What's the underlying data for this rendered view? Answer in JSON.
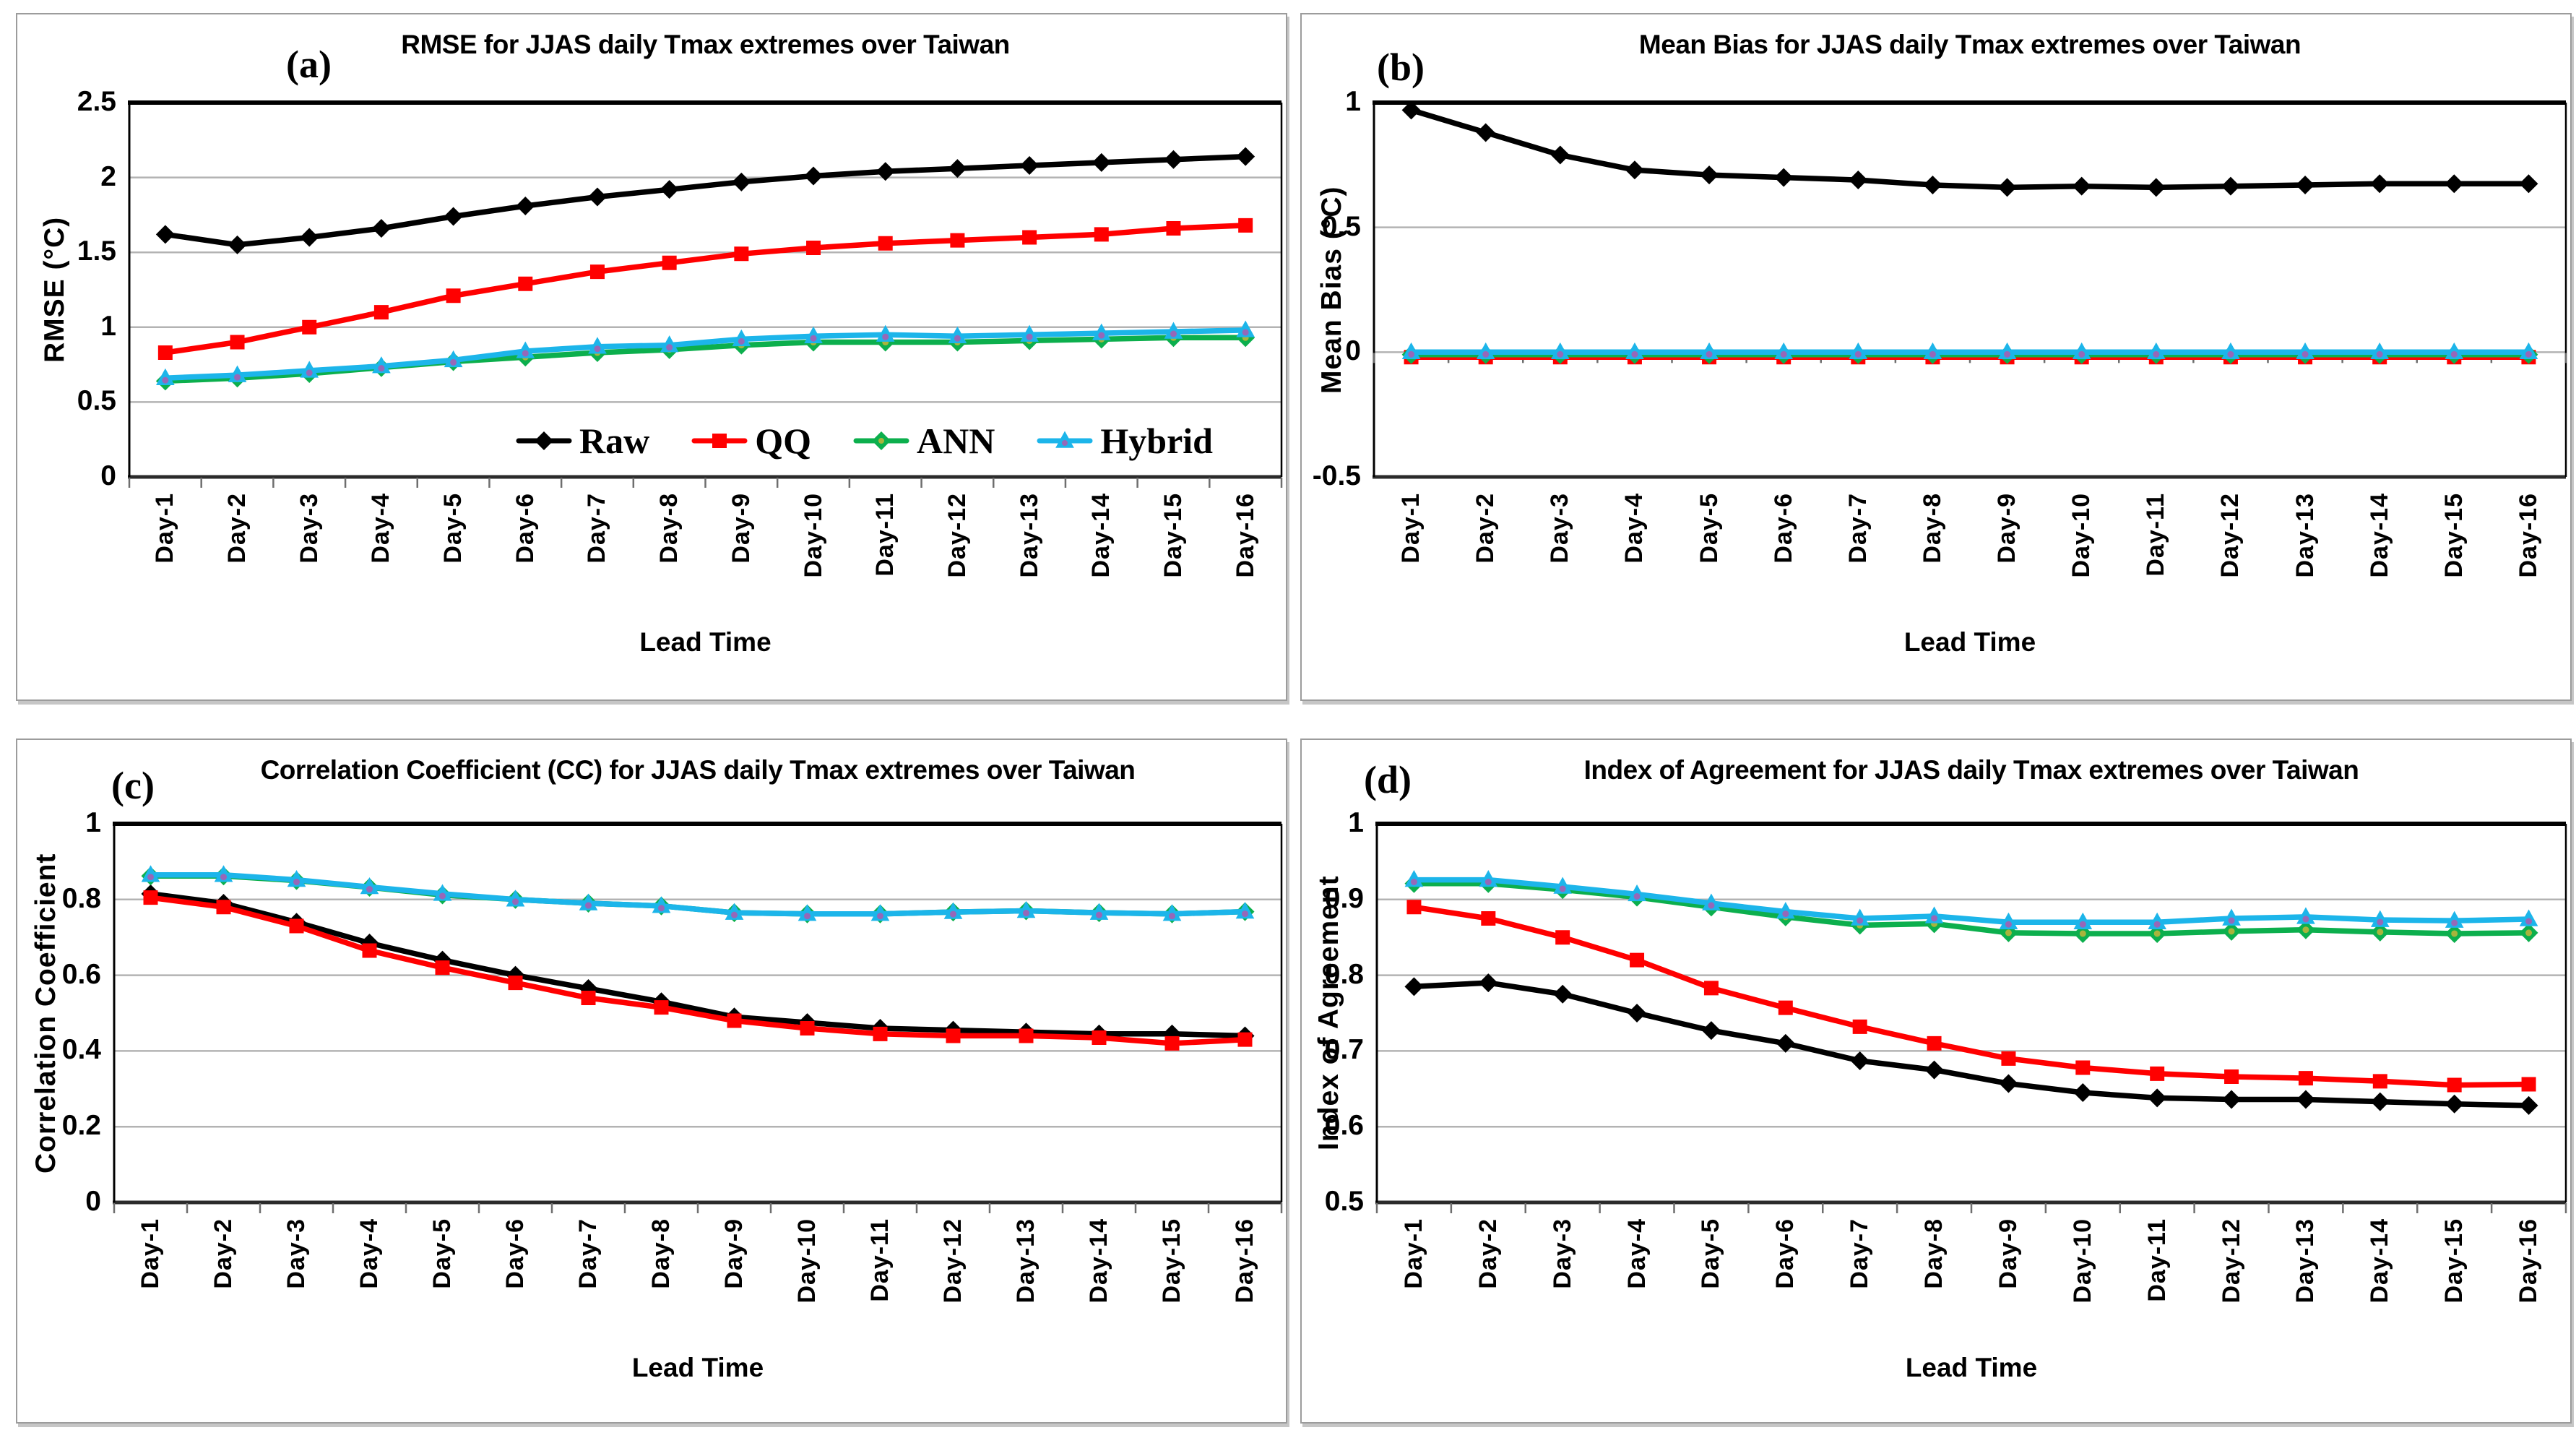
{
  "figure": {
    "background": "#ffffff",
    "series_colors": {
      "Raw": "#000000",
      "QQ": "#ff0000",
      "ANN": "#0caf4d",
      "Hybrid": "#1cb5ea"
    },
    "gridline_color": "#b3b3b3",
    "axis_color": "#000000"
  },
  "chart_data": [
    {
      "id": "a",
      "panel_label": "(a)",
      "type": "line",
      "title": "RMSE for JJAS daily Tmax extremes over Taiwan",
      "xlabel": "Lead Time",
      "ylabel": "RMSE (°C)",
      "ylim": [
        0,
        2.5
      ],
      "y_ticks": [
        {
          "v": 2.5,
          "label": "2.5"
        },
        {
          "v": 2,
          "label": "2"
        },
        {
          "v": 1.5,
          "label": "1.5"
        },
        {
          "v": 1,
          "label": "1"
        },
        {
          "v": 0.5,
          "label": "0.5"
        },
        {
          "v": 0,
          "label": "0"
        }
      ],
      "grid": true,
      "legend_position": "inside-bottom",
      "show_legend": true,
      "categories": [
        "Day-1",
        "Day-2",
        "Day-3",
        "Day-4",
        "Day-5",
        "Day-6",
        "Day-7",
        "Day-8",
        "Day-9",
        "Day-10",
        "Day-11",
        "Day-12",
        "Day-13",
        "Day-14",
        "Day-15",
        "Day-16"
      ],
      "series": [
        {
          "name": "Raw",
          "color": "#000000",
          "marker": "diamond",
          "center": null,
          "values": [
            1.62,
            1.55,
            1.6,
            1.66,
            1.74,
            1.81,
            1.87,
            1.92,
            1.97,
            2.01,
            2.04,
            2.06,
            2.08,
            2.1,
            2.12,
            2.14
          ]
        },
        {
          "name": "QQ",
          "color": "#ff0000",
          "marker": "square",
          "center": null,
          "values": [
            0.83,
            0.9,
            1.0,
            1.1,
            1.21,
            1.29,
            1.37,
            1.43,
            1.49,
            1.53,
            1.56,
            1.58,
            1.6,
            1.62,
            1.66,
            1.68
          ]
        },
        {
          "name": "ANN",
          "color": "#0caf4d",
          "marker": "diamond",
          "center": "#a8b43c",
          "values": [
            0.64,
            0.66,
            0.69,
            0.73,
            0.77,
            0.8,
            0.83,
            0.85,
            0.88,
            0.9,
            0.9,
            0.9,
            0.91,
            0.92,
            0.93,
            0.93
          ]
        },
        {
          "name": "Hybrid",
          "color": "#1cb5ea",
          "marker": "triangle",
          "center": "#9668b8",
          "values": [
            0.66,
            0.68,
            0.71,
            0.74,
            0.78,
            0.84,
            0.87,
            0.88,
            0.92,
            0.94,
            0.95,
            0.94,
            0.95,
            0.96,
            0.97,
            0.98
          ]
        }
      ]
    },
    {
      "id": "b",
      "panel_label": "(b)",
      "type": "line",
      "title": "Mean Bias  for JJAS daily Tmax extremes over Taiwan",
      "xlabel": "Lead Time",
      "ylabel": "Mean Bias (°C)",
      "ylim": [
        -0.5,
        1
      ],
      "y_ticks": [
        {
          "v": 1,
          "label": "1"
        },
        {
          "v": 0.5,
          "label": "0.5"
        },
        {
          "v": 0,
          "label": "0"
        },
        {
          "v": -0.5,
          "label": "-0.5"
        }
      ],
      "grid": true,
      "legend_position": "none",
      "show_legend": false,
      "axis_cross_y": 0,
      "categories": [
        "Day-1",
        "Day-2",
        "Day-3",
        "Day-4",
        "Day-5",
        "Day-6",
        "Day-7",
        "Day-8",
        "Day-9",
        "Day-10",
        "Day-11",
        "Day-12",
        "Day-13",
        "Day-14",
        "Day-15",
        "Day-16"
      ],
      "series": [
        {
          "name": "Raw",
          "color": "#000000",
          "marker": "diamond",
          "center": null,
          "values": [
            0.97,
            0.88,
            0.79,
            0.73,
            0.71,
            0.7,
            0.69,
            0.67,
            0.66,
            0.665,
            0.66,
            0.665,
            0.67,
            0.675,
            0.675,
            0.675
          ]
        },
        {
          "name": "QQ",
          "color": "#ff0000",
          "marker": "square",
          "center": null,
          "values": [
            -0.02,
            -0.02,
            -0.02,
            -0.02,
            -0.02,
            -0.02,
            -0.02,
            -0.02,
            -0.02,
            -0.02,
            -0.02,
            -0.02,
            -0.02,
            -0.02,
            -0.02,
            -0.02
          ]
        },
        {
          "name": "ANN",
          "color": "#0caf4d",
          "marker": "diamond",
          "center": "#a8b43c",
          "values": [
            -0.01,
            -0.01,
            -0.01,
            -0.01,
            -0.01,
            -0.01,
            -0.01,
            -0.01,
            -0.01,
            -0.01,
            -0.01,
            -0.01,
            -0.01,
            -0.01,
            -0.01,
            -0.01
          ]
        },
        {
          "name": "Hybrid",
          "color": "#1cb5ea",
          "marker": "triangle",
          "center": "#9668b8",
          "values": [
            0.0,
            0.0,
            0.0,
            0.0,
            0.0,
            0.0,
            0.0,
            0.0,
            0.0,
            0.0,
            0.0,
            0.0,
            0.0,
            0.0,
            0.0,
            0.0
          ]
        }
      ]
    },
    {
      "id": "c",
      "panel_label": "(c)",
      "type": "line",
      "title": "Correlation Coefficient (CC) for JJAS daily Tmax extremes over Taiwan",
      "xlabel": "Lead Time",
      "ylabel": "Correlation Coefficient",
      "ylim": [
        0,
        1
      ],
      "y_ticks": [
        {
          "v": 1,
          "label": "1"
        },
        {
          "v": 0.8,
          "label": "0.8"
        },
        {
          "v": 0.6,
          "label": "0.6"
        },
        {
          "v": 0.4,
          "label": "0.4"
        },
        {
          "v": 0.2,
          "label": "0.2"
        },
        {
          "v": 0,
          "label": "0"
        }
      ],
      "grid": true,
      "legend_position": "none",
      "show_legend": false,
      "categories": [
        "Day-1",
        "Day-2",
        "Day-3",
        "Day-4",
        "Day-5",
        "Day-6",
        "Day-7",
        "Day-8",
        "Day-9",
        "Day-10",
        "Day-11",
        "Day-12",
        "Day-13",
        "Day-14",
        "Day-15",
        "Day-16"
      ],
      "series": [
        {
          "name": "Raw",
          "color": "#000000",
          "marker": "diamond",
          "center": null,
          "values": [
            0.815,
            0.79,
            0.74,
            0.685,
            0.64,
            0.6,
            0.565,
            0.53,
            0.49,
            0.475,
            0.46,
            0.455,
            0.45,
            0.445,
            0.445,
            0.44
          ]
        },
        {
          "name": "QQ",
          "color": "#ff0000",
          "marker": "square",
          "center": null,
          "values": [
            0.805,
            0.78,
            0.73,
            0.665,
            0.62,
            0.58,
            0.54,
            0.515,
            0.48,
            0.46,
            0.445,
            0.44,
            0.44,
            0.435,
            0.42,
            0.43
          ]
        },
        {
          "name": "ANN",
          "color": "#0caf4d",
          "marker": "diamond",
          "center": "#a8b43c",
          "values": [
            0.862,
            0.862,
            0.85,
            0.832,
            0.812,
            0.8,
            0.79,
            0.783,
            0.765,
            0.762,
            0.762,
            0.767,
            0.77,
            0.765,
            0.762,
            0.768
          ]
        },
        {
          "name": "Hybrid",
          "color": "#1cb5ea",
          "marker": "triangle",
          "center": "#9668b8",
          "values": [
            0.865,
            0.865,
            0.852,
            0.833,
            0.815,
            0.8,
            0.79,
            0.783,
            0.765,
            0.762,
            0.762,
            0.767,
            0.77,
            0.765,
            0.762,
            0.768
          ]
        }
      ]
    },
    {
      "id": "d",
      "panel_label": "(d)",
      "type": "line",
      "title": "Index of Agreement for JJAS daily Tmax extremes over Taiwan",
      "xlabel": "Lead Time",
      "ylabel": "Index of Agreement",
      "ylim": [
        0.5,
        1
      ],
      "y_ticks": [
        {
          "v": 1,
          "label": "1"
        },
        {
          "v": 0.9,
          "label": "0.9"
        },
        {
          "v": 0.8,
          "label": "0.8"
        },
        {
          "v": 0.7,
          "label": "0.7"
        },
        {
          "v": 0.6,
          "label": "0.6"
        },
        {
          "v": 0.5,
          "label": "0.5"
        }
      ],
      "grid": true,
      "legend_position": "none",
      "show_legend": false,
      "categories": [
        "Day-1",
        "Day-2",
        "Day-3",
        "Day-4",
        "Day-5",
        "Day-6",
        "Day-7",
        "Day-8",
        "Day-9",
        "Day-10",
        "Day-11",
        "Day-12",
        "Day-13",
        "Day-14",
        "Day-15",
        "Day-16"
      ],
      "series": [
        {
          "name": "Raw",
          "color": "#000000",
          "marker": "diamond",
          "center": null,
          "values": [
            0.785,
            0.79,
            0.775,
            0.75,
            0.727,
            0.71,
            0.687,
            0.675,
            0.657,
            0.645,
            0.638,
            0.636,
            0.636,
            0.633,
            0.63,
            0.628
          ]
        },
        {
          "name": "QQ",
          "color": "#ff0000",
          "marker": "square",
          "center": null,
          "values": [
            0.89,
            0.875,
            0.85,
            0.82,
            0.783,
            0.757,
            0.732,
            0.71,
            0.69,
            0.678,
            0.67,
            0.666,
            0.664,
            0.66,
            0.655,
            0.656
          ]
        },
        {
          "name": "ANN",
          "color": "#0caf4d",
          "marker": "diamond",
          "center": "#a8b43c",
          "values": [
            0.921,
            0.921,
            0.913,
            0.903,
            0.89,
            0.877,
            0.866,
            0.868,
            0.856,
            0.855,
            0.855,
            0.858,
            0.86,
            0.857,
            0.855,
            0.856
          ]
        },
        {
          "name": "Hybrid",
          "color": "#1cb5ea",
          "marker": "triangle",
          "center": "#9668b8",
          "values": [
            0.926,
            0.926,
            0.917,
            0.907,
            0.895,
            0.884,
            0.875,
            0.878,
            0.87,
            0.87,
            0.87,
            0.875,
            0.877,
            0.873,
            0.872,
            0.874
          ]
        }
      ]
    }
  ]
}
